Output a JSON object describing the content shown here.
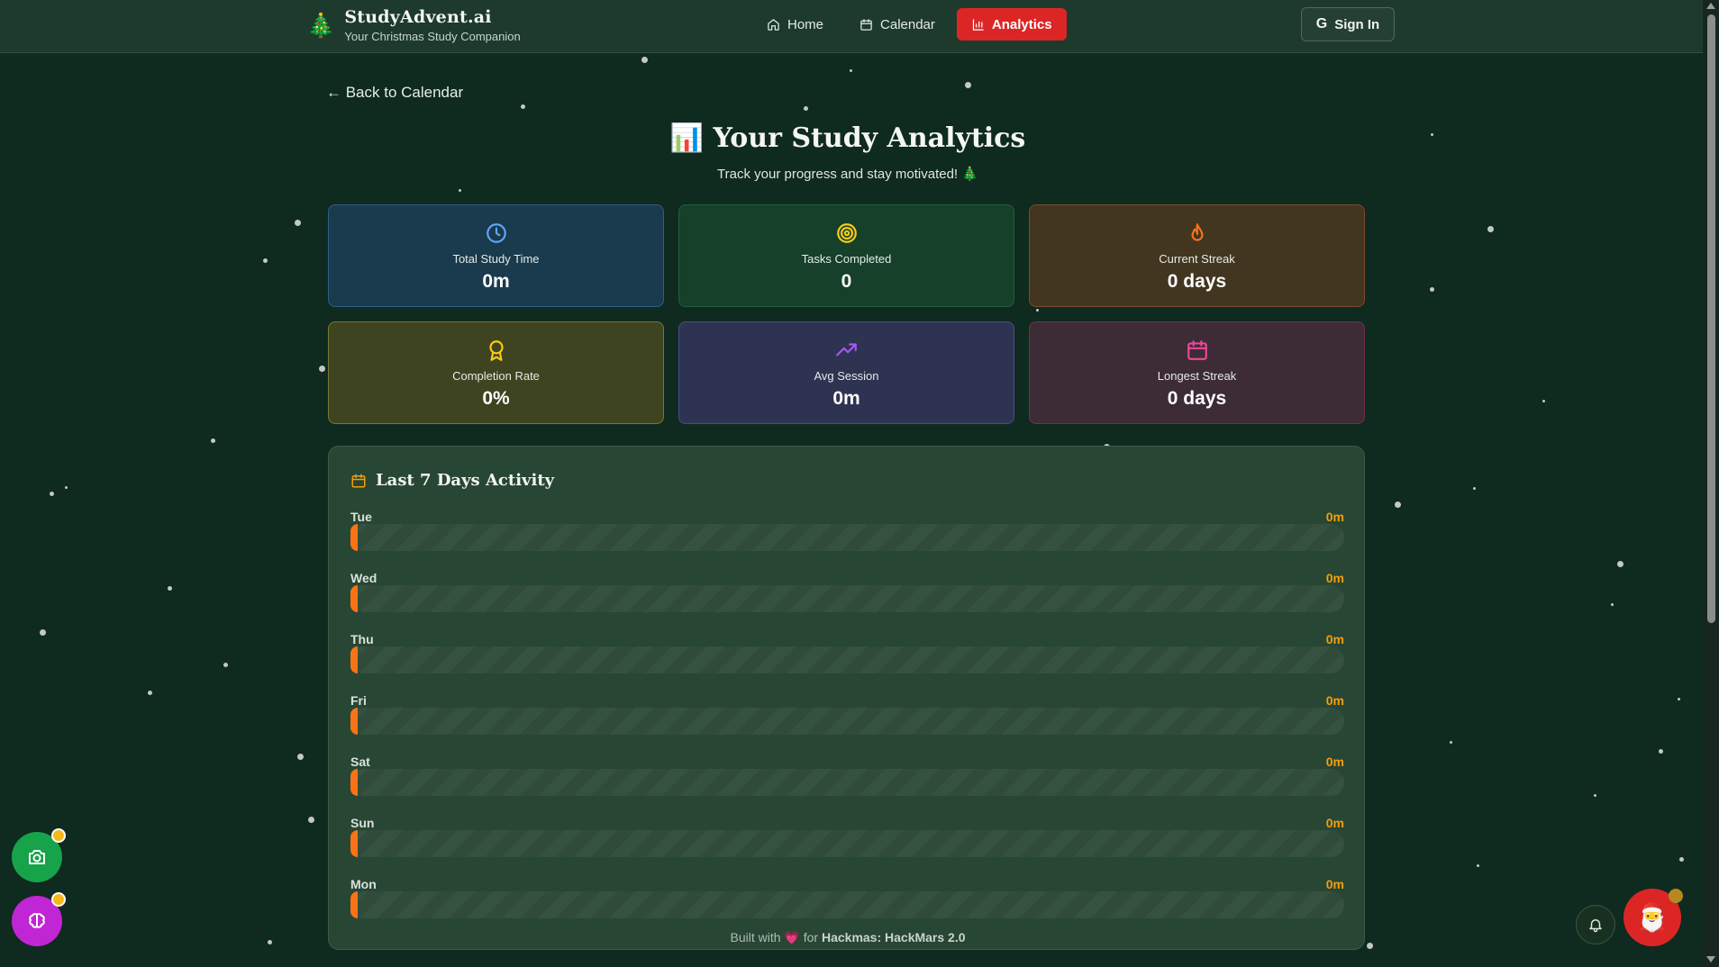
{
  "header": {
    "brand_icon": "🎄",
    "brand_name": "StudyAdvent.ai",
    "brand_tagline": "Your Christmas Study Companion",
    "nav": [
      {
        "label": "Home",
        "icon": "home-icon"
      },
      {
        "label": "Calendar",
        "icon": "calendar-icon"
      },
      {
        "label": "Analytics",
        "icon": "bar-chart-icon",
        "active": true
      }
    ],
    "sign_in_icon": "G",
    "sign_in_label": "Sign In"
  },
  "back_link": "← Back to Calendar",
  "title_icon": "📊",
  "title": "Your Study Analytics",
  "subtitle": "Track your progress and stay motivated! 🎄",
  "stats": [
    {
      "label": "Total Study Time",
      "value": "0m",
      "icon": "clock-icon",
      "color": "#60a5fa"
    },
    {
      "label": "Tasks Completed",
      "value": "0",
      "icon": "target-icon",
      "color": "#facc15"
    },
    {
      "label": "Current Streak",
      "value": "0 days",
      "icon": "flame-icon",
      "color": "#f97316"
    },
    {
      "label": "Completion Rate",
      "value": "0%",
      "icon": "award-icon",
      "color": "#facc15"
    },
    {
      "label": "Avg Session",
      "value": "0m",
      "icon": "trending-up-icon",
      "color": "#a855f7"
    },
    {
      "label": "Longest Streak",
      "value": "0 days",
      "icon": "calendar-icon",
      "color": "#ec4899"
    }
  ],
  "activity": {
    "title": "Last 7 Days Activity",
    "days": [
      {
        "day": "Tue",
        "value": "0m",
        "progress": 0
      },
      {
        "day": "Wed",
        "value": "0m",
        "progress": 0
      },
      {
        "day": "Thu",
        "value": "0m",
        "progress": 0
      },
      {
        "day": "Fri",
        "value": "0m",
        "progress": 0
      },
      {
        "day": "Sat",
        "value": "0m",
        "progress": 0
      },
      {
        "day": "Sun",
        "value": "0m",
        "progress": 0
      },
      {
        "day": "Mon",
        "value": "0m",
        "progress": 0
      }
    ]
  },
  "footer": {
    "prefix": "Built with",
    "heart": "💗",
    "middle": "for",
    "event": "Hackmas: HackMars 2.0"
  },
  "floating": {
    "camera_icon": "camera-icon",
    "brain_icon": "brain-icon",
    "bell_icon": "bell-icon",
    "santa": "🎅"
  },
  "colors": {
    "background": "#0f2a1f",
    "accent": "#dc2626",
    "bar": "#f97316",
    "value": "#f59e0b"
  }
}
